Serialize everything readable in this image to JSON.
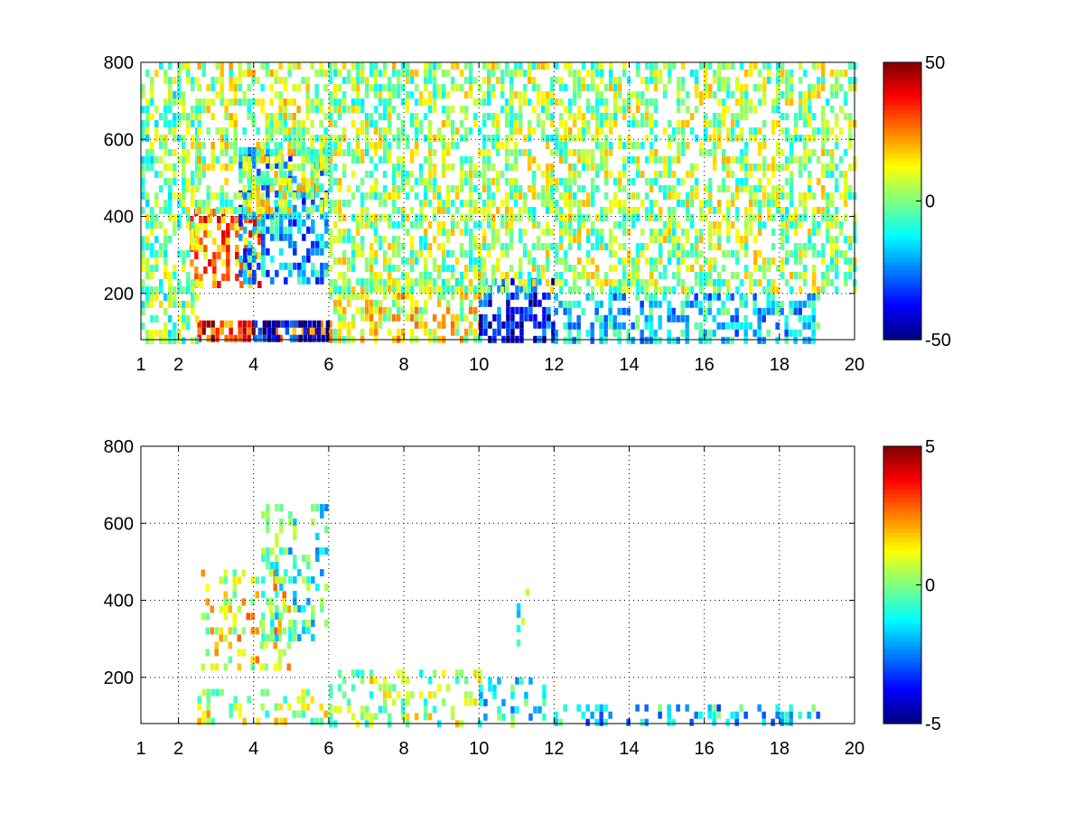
{
  "chart_data": [
    {
      "type": "heatmap",
      "title": "",
      "xlabel": "",
      "ylabel": "",
      "xlim": [
        1,
        20
      ],
      "ylim": [
        80,
        800
      ],
      "xticks": [
        "1",
        "2",
        "4",
        "6",
        "8",
        "10",
        "12",
        "14",
        "16",
        "18",
        "20"
      ],
      "xtick_values": [
        1,
        2,
        4,
        6,
        8,
        10,
        12,
        14,
        16,
        18,
        20
      ],
      "yticks": [
        "200",
        "400",
        "600",
        "800"
      ],
      "ytick_values": [
        200,
        400,
        600,
        800
      ],
      "grid": true,
      "colorbar": {
        "min": -50,
        "max": 50,
        "ticks": [
          "50",
          "0",
          "-50"
        ],
        "tick_values": [
          50,
          0,
          -50
        ],
        "colormap": "jet"
      },
      "features": [
        {
          "x": [
            2.3,
            4.2
          ],
          "y": [
            220,
            420
          ],
          "value": 25
        },
        {
          "x": [
            3.6,
            5.9
          ],
          "y": [
            240,
            580
          ],
          "value": -20
        },
        {
          "x": [
            2.5,
            6.0
          ],
          "y": [
            85,
            130
          ],
          "value": 35
        },
        {
          "x": [
            4.0,
            6.0
          ],
          "y": [
            85,
            130
          ],
          "value": -40
        },
        {
          "x": [
            6.0,
            10.0
          ],
          "y": [
            85,
            240
          ],
          "value": 10
        },
        {
          "x": [
            10.0,
            12.0
          ],
          "y": [
            85,
            240
          ],
          "value": -35
        },
        {
          "x": [
            12.0,
            19.0
          ],
          "y": [
            85,
            200
          ],
          "value": -15
        },
        {
          "x": [
            1.0,
            2.5
          ],
          "y": [
            85,
            800
          ],
          "value": 0
        },
        {
          "x": [
            2.5,
            6.0
          ],
          "y": [
            420,
            800
          ],
          "value": 5
        },
        {
          "x": [
            6.0,
            20.0
          ],
          "y": [
            200,
            800
          ],
          "value": 3
        }
      ]
    },
    {
      "type": "heatmap",
      "title": "",
      "xlabel": "",
      "ylabel": "",
      "xlim": [
        1,
        20
      ],
      "ylim": [
        80,
        800
      ],
      "xticks": [
        "1",
        "2",
        "4",
        "6",
        "8",
        "10",
        "12",
        "14",
        "16",
        "18",
        "20"
      ],
      "xtick_values": [
        1,
        2,
        4,
        6,
        8,
        10,
        12,
        14,
        16,
        18,
        20
      ],
      "yticks": [
        "200",
        "400",
        "600",
        "800"
      ],
      "ytick_values": [
        200,
        400,
        600,
        800
      ],
      "grid": true,
      "colorbar": {
        "min": -5,
        "max": 5,
        "ticks": [
          "5",
          "0",
          "-5"
        ],
        "tick_values": [
          5,
          0,
          -5
        ],
        "colormap": "jet"
      },
      "features": [
        {
          "x": [
            2.6,
            5.0
          ],
          "y": [
            220,
            480
          ],
          "value": 1.2
        },
        {
          "x": [
            4.2,
            5.9
          ],
          "y": [
            300,
            650
          ],
          "value": -0.8
        },
        {
          "x": [
            2.5,
            6.0
          ],
          "y": [
            85,
            170
          ],
          "value": 0.6
        },
        {
          "x": [
            6.0,
            10.0
          ],
          "y": [
            85,
            220
          ],
          "value": 0.3
        },
        {
          "x": [
            10.0,
            12.0
          ],
          "y": [
            85,
            200
          ],
          "value": -1.0
        },
        {
          "x": [
            12.0,
            19.0
          ],
          "y": [
            85,
            130
          ],
          "value": -1.5
        },
        {
          "x": [
            11.0,
            11.3
          ],
          "y": [
            250,
            430
          ],
          "value": -0.5
        }
      ]
    }
  ]
}
